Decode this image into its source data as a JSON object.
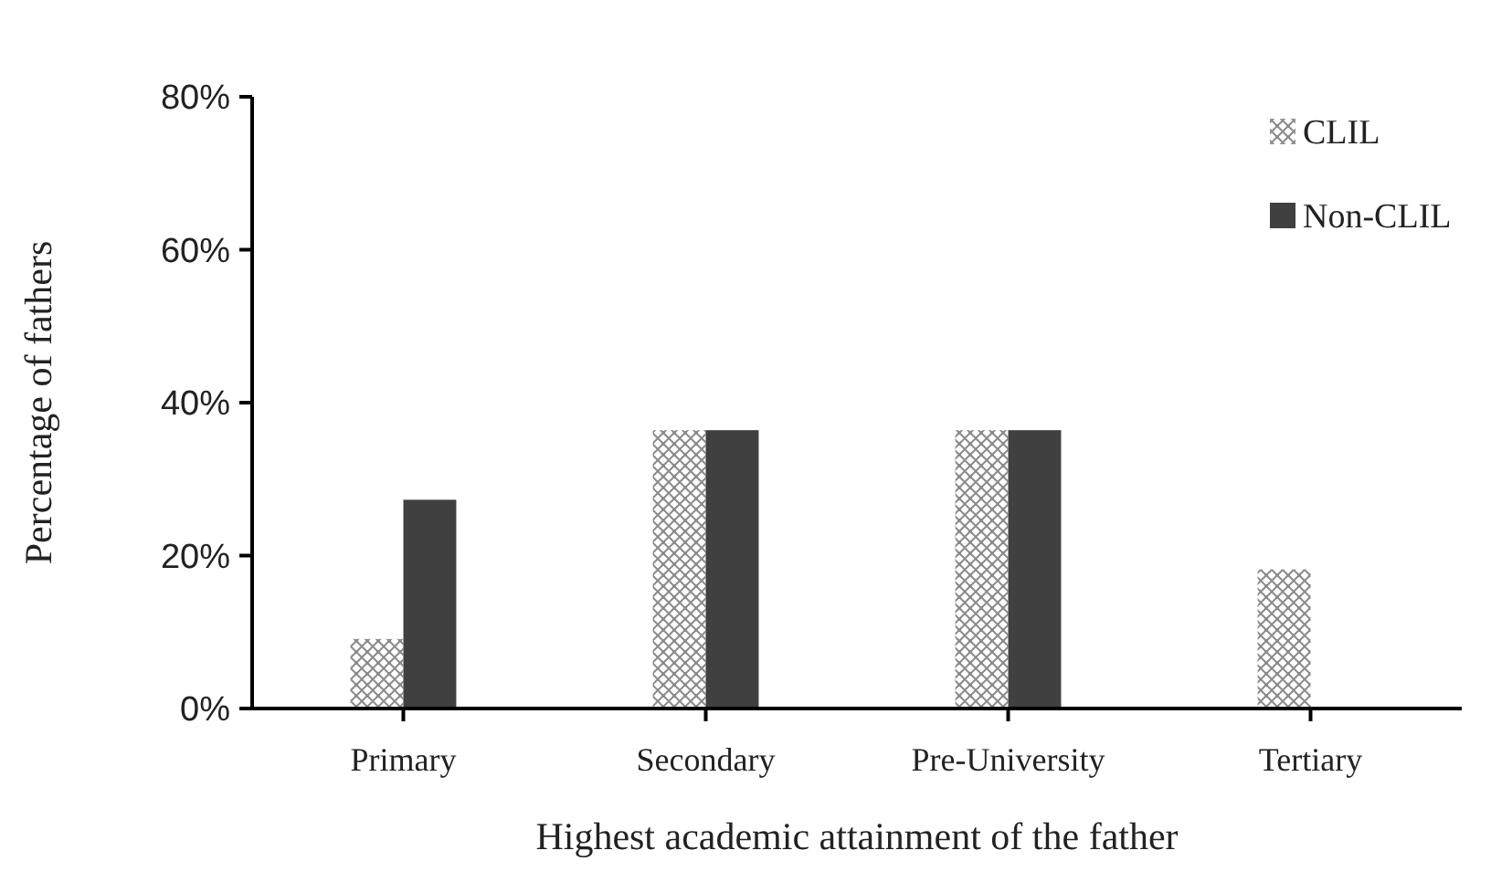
{
  "chart_data": {
    "type": "bar",
    "xlabel": "Highest academic attainment of the father",
    "ylabel": "Percentage of fathers",
    "categories": [
      "Primary",
      "Secondary",
      "Pre-University",
      "Tertiary"
    ],
    "series": [
      {
        "name": "CLIL",
        "color": "#8c8c8c",
        "values": [
          9.1,
          36.4,
          36.4,
          18.2
        ]
      },
      {
        "name": "Non-CLIL",
        "color": "#404040",
        "values": [
          27.3,
          36.4,
          36.4,
          0
        ]
      }
    ],
    "ylim": [
      0,
      80
    ],
    "yticks": [
      {
        "value": 0,
        "label": "0%"
      },
      {
        "value": 20,
        "label": "20%"
      },
      {
        "value": 40,
        "label": "40%"
      },
      {
        "value": 60,
        "label": "60%"
      },
      {
        "value": 80,
        "label": "80%"
      }
    ],
    "legend": "top right"
  }
}
